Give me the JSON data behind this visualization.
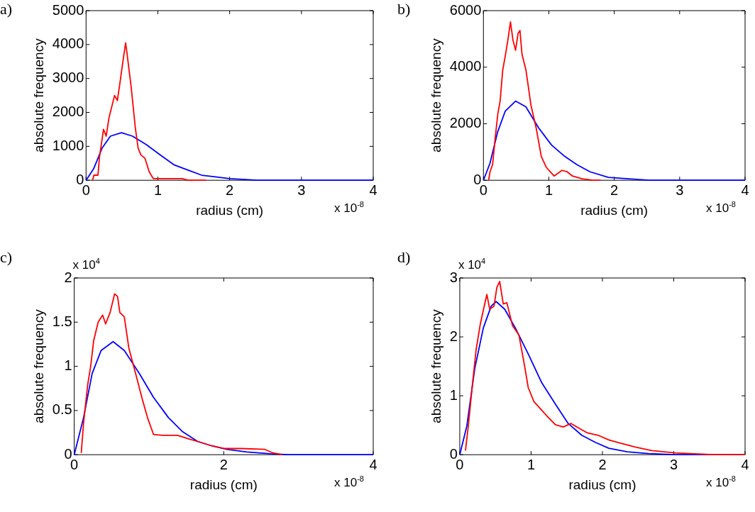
{
  "chart_data": [
    {
      "type": "line",
      "title": "a)",
      "xlabel": "radius (cm)",
      "ylabel": "absolute frequency",
      "annotations": [
        "x 10$^{-8}$"
      ],
      "xlim": [
        0,
        4
      ],
      "xticks": [
        0,
        1,
        2,
        3,
        4
      ],
      "ylim": [
        0,
        5000
      ],
      "yticks": [
        0,
        1000,
        2000,
        3000,
        4000,
        5000
      ],
      "grid": false,
      "marker": "none",
      "series": [
        {
          "color": "#ff0000",
          "x": [
            0.09,
            0.11,
            0.166,
            0.185,
            0.243,
            0.28,
            0.32,
            0.397,
            0.436,
            0.474,
            0.513,
            0.551,
            0.57,
            0.628,
            0.686,
            0.725,
            0.763,
            0.82,
            0.879,
            0.936,
            1.03,
            1.19,
            1.34,
            1.42,
            1.67
          ],
          "values": [
            0,
            150,
            150,
            650,
            1500,
            1300,
            1850,
            2500,
            2350,
            2900,
            3500,
            4050,
            3750,
            2750,
            1550,
            950,
            750,
            650,
            250,
            50,
            50,
            50,
            50,
            0,
            0
          ]
        },
        {
          "color": "#0000ff",
          "x": [
            0,
            0.108,
            0.224,
            0.339,
            0.493,
            0.647,
            0.84,
            1.03,
            1.23,
            1.42,
            1.61,
            1.8,
            2.0,
            2.38,
            2.96,
            4
          ],
          "values": [
            0,
            350,
            950,
            1300,
            1400,
            1300,
            1050,
            750,
            450,
            300,
            150,
            100,
            50,
            0,
            0,
            0
          ]
        }
      ]
    },
    {
      "type": "line",
      "title": "b)",
      "xlabel": "radius (cm)",
      "ylabel": "absolute frequency",
      "annotations": [
        "x 10$^{-8}$"
      ],
      "xlim": [
        0,
        4
      ],
      "xticks": [
        0,
        1,
        2,
        3,
        4
      ],
      "ylim": [
        0,
        6000
      ],
      "yticks": [
        0,
        2000,
        4000,
        6000
      ],
      "grid": false,
      "marker": "none",
      "series": [
        {
          "color": "#ff0000",
          "x": [
            0.08,
            0.1,
            0.14,
            0.18,
            0.22,
            0.255,
            0.295,
            0.334,
            0.373,
            0.413,
            0.452,
            0.491,
            0.53,
            0.558,
            0.59,
            0.65,
            0.727,
            0.806,
            0.884,
            0.963,
            1.08,
            1.2,
            1.28,
            1.36,
            1.51,
            1.67,
            1.79
          ],
          "values": [
            0,
            300,
            550,
            1500,
            2350,
            2800,
            3900,
            4400,
            4950,
            5600,
            4950,
            4600,
            5200,
            5300,
            4450,
            3900,
            2650,
            1850,
            850,
            450,
            150,
            350,
            300,
            150,
            50,
            0,
            0
          ]
        },
        {
          "color": "#0000ff",
          "x": [
            0,
            0.1,
            0.216,
            0.334,
            0.491,
            0.648,
            0.845,
            1.04,
            1.24,
            1.43,
            1.63,
            1.91,
            2.22,
            2.53,
            4
          ],
          "values": [
            0,
            600,
            1700,
            2450,
            2800,
            2600,
            1850,
            1250,
            850,
            550,
            300,
            100,
            50,
            0,
            0
          ]
        }
      ]
    },
    {
      "type": "line",
      "title": "c)",
      "xlabel": "radius (cm)",
      "ylabel": "absolute frequency",
      "annotations": [
        "x 10$^{-8}$",
        "x 10$^{4}$"
      ],
      "xlim": [
        0,
        4
      ],
      "xticks": [
        0,
        2,
        4
      ],
      "ylim": [
        0,
        2
      ],
      "yticks": [
        0,
        0.5,
        1,
        1.5,
        2
      ],
      "grid": false,
      "marker": "none",
      "series": [
        {
          "color": "#ff0000",
          "x": [
            0.094,
            0.125,
            0.18,
            0.22,
            0.26,
            0.32,
            0.38,
            0.42,
            0.48,
            0.54,
            0.58,
            0.61,
            0.67,
            0.73,
            0.83,
            0.91,
            0.98,
            1.06,
            1.18,
            1.38,
            1.53,
            1.69,
            1.84,
            2.0,
            2.23,
            2.55,
            2.66,
            2.78
          ],
          "values": [
            0.02,
            0.36,
            0.79,
            1.0,
            1.29,
            1.5,
            1.58,
            1.48,
            1.61,
            1.82,
            1.79,
            1.61,
            1.56,
            1.21,
            0.89,
            0.63,
            0.42,
            0.23,
            0.22,
            0.22,
            0.18,
            0.14,
            0.1,
            0.07,
            0.07,
            0.06,
            0.02,
            0
          ]
        },
        {
          "color": "#0000ff",
          "x": [
            0,
            0.125,
            0.24,
            0.36,
            0.52,
            0.67,
            0.87,
            1.06,
            1.26,
            1.45,
            1.65,
            1.84,
            2.04,
            2.31,
            2.63,
            2.86,
            4
          ],
          "values": [
            0,
            0.42,
            0.92,
            1.18,
            1.28,
            1.18,
            0.92,
            0.65,
            0.42,
            0.26,
            0.15,
            0.1,
            0.06,
            0.03,
            0.01,
            0,
            0
          ]
        }
      ]
    },
    {
      "type": "line",
      "title": "d)",
      "xlabel": "radius (cm)",
      "ylabel": "absolute frequency",
      "annotations": [
        "x 10$^{-8}$",
        "x 10$^{4}$"
      ],
      "xlim": [
        0,
        4
      ],
      "xticks": [
        0,
        1,
        2,
        3,
        4
      ],
      "ylim": [
        0,
        3
      ],
      "yticks": [
        0,
        1,
        2,
        3
      ],
      "grid": false,
      "marker": "none",
      "series": [
        {
          "color": "#ff0000",
          "x": [
            0.08,
            0.12,
            0.18,
            0.23,
            0.29,
            0.35,
            0.38,
            0.42,
            0.48,
            0.52,
            0.56,
            0.61,
            0.66,
            0.74,
            0.83,
            0.91,
            0.96,
            1.04,
            1.13,
            1.22,
            1.34,
            1.45,
            1.56,
            1.67,
            1.79,
            1.94,
            2.09,
            2.27,
            2.46,
            2.69,
            3.02,
            3.4,
            3.55,
            4
          ],
          "values": [
            0.07,
            0.49,
            1.22,
            1.79,
            2.23,
            2.56,
            2.72,
            2.47,
            2.52,
            2.84,
            2.94,
            2.56,
            2.58,
            2.19,
            2.03,
            1.5,
            1.14,
            0.9,
            0.78,
            0.66,
            0.51,
            0.47,
            0.53,
            0.45,
            0.37,
            0.33,
            0.25,
            0.19,
            0.13,
            0.07,
            0.03,
            0.01,
            0,
            0
          ]
        },
        {
          "color": "#0000ff",
          "x": [
            0,
            0.1,
            0.21,
            0.33,
            0.44,
            0.51,
            0.63,
            0.78,
            0.96,
            1.15,
            1.34,
            1.52,
            1.71,
            1.9,
            2.09,
            2.35,
            2.65,
            3.02,
            4
          ],
          "values": [
            0,
            0.49,
            1.46,
            2.15,
            2.52,
            2.6,
            2.47,
            2.15,
            1.71,
            1.22,
            0.86,
            0.53,
            0.33,
            0.21,
            0.11,
            0.05,
            0.02,
            0,
            0
          ]
        }
      ]
    }
  ]
}
